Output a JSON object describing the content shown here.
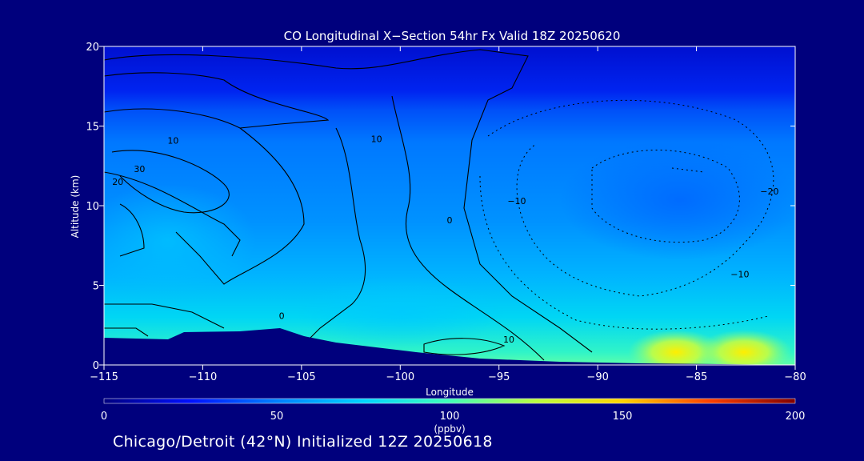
{
  "chart_data": {
    "type": "heatmap",
    "title": "CO Longitudinal X−Section 54hr  Fx Valid 18Z 20250620",
    "xlabel": "Longitude",
    "ylabel": "Altitude (km)",
    "xlim": [
      -115,
      -80
    ],
    "ylim": [
      0,
      20
    ],
    "xticks": [
      -115,
      -110,
      -105,
      -100,
      -95,
      -90,
      -85,
      -80
    ],
    "xtick_labels": [
      "−115",
      "−110",
      "−105",
      "−100",
      "−95",
      "−90",
      "−85",
      "−80"
    ],
    "yticks": [
      0,
      5,
      10,
      15,
      20
    ],
    "ytick_labels": [
      "0",
      "5",
      "10",
      "15",
      "20"
    ],
    "colorbar": {
      "min": 0,
      "max": 200,
      "ticks": [
        0,
        50,
        100,
        150,
        200
      ],
      "tick_labels": [
        "0",
        "50",
        "100",
        "150",
        "200"
      ],
      "unit": "(ppbv)",
      "colors": [
        "#00007f",
        "#0010ff",
        "#0080ff",
        "#00d4ff",
        "#40ffb8",
        "#b8ff40",
        "#ffd400",
        "#ff4000",
        "#7f0000"
      ]
    },
    "contour_labels": [
      {
        "text": "10",
        "lon": -111.5,
        "alt": 13.9
      },
      {
        "text": "30",
        "lon": -113.2,
        "alt": 12.1
      },
      {
        "text": "20",
        "lon": -114.3,
        "alt": 11.3
      },
      {
        "text": "10",
        "lon": -101.2,
        "alt": 14.0
      },
      {
        "text": "0",
        "lon": -97.5,
        "alt": 8.9
      },
      {
        "text": "−10",
        "lon": -94.1,
        "alt": 10.1
      },
      {
        "text": "−20",
        "lon": -81.3,
        "alt": 10.7
      },
      {
        "text": "−10",
        "lon": -82.8,
        "alt": 5.5
      },
      {
        "text": "10",
        "lon": -94.5,
        "alt": 1.4
      },
      {
        "text": "0",
        "lon": -106,
        "alt": 2.9
      }
    ]
  },
  "footer": {
    "text": "Chicago/Detroit (42°N) Initialized 12Z 20250618"
  }
}
